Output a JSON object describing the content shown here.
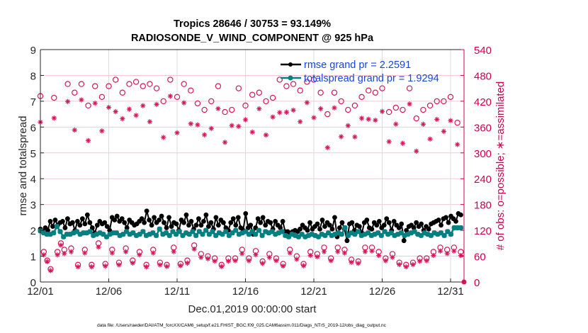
{
  "chart_data": {
    "type": "line",
    "title": "Tropics 28646 / 30753 = 93.149%",
    "subtitle": "RADIOSONDE_V_WIND_COMPONENT @ 925 hPa",
    "xlabel": "Dec.01,2019 00:00:00 start",
    "ylabel": "rmse and totalspread",
    "y2label": "# of obs: o=possible; ∗=assimilated",
    "footnote": "data file: /Users/raeder/DAI/ATM_forcXX/CAM6_setup/f.e21.FHIST_BGC.f09_025.CAM6assim.011/Diags_NTrS_2019-12/obs_diag_output.nc",
    "xlim_days": [
      0,
      31
    ],
    "x_ticks": [
      {
        "day": 0,
        "label": "12/01"
      },
      {
        "day": 5,
        "label": "12/06"
      },
      {
        "day": 10,
        "label": "12/11"
      },
      {
        "day": 15,
        "label": "12/16"
      },
      {
        "day": 20,
        "label": "12/21"
      },
      {
        "day": 25,
        "label": "12/26"
      },
      {
        "day": 30,
        "label": "12/31"
      }
    ],
    "ylim": [
      0,
      9
    ],
    "y_ticks": [
      0,
      1,
      2,
      3,
      4,
      5,
      6,
      7,
      8,
      9
    ],
    "y2lim": [
      0,
      540
    ],
    "y2_ticks": [
      0,
      60,
      120,
      180,
      240,
      300,
      360,
      420,
      480,
      540
    ],
    "grid": true,
    "time_step_days": 0.25,
    "legend": {
      "placement": "top-right",
      "entries": [
        {
          "label": "rmse grand pr = 2.2591",
          "color": "#000000"
        },
        {
          "label": "totalspread grand pr = 1.9294",
          "color": "#008080"
        }
      ]
    },
    "colors": {
      "rmse": "#000000",
      "totalspread": "#008080",
      "obs": "#d6175a",
      "right_axis": "#cc0052",
      "grid": "#dcdcdc",
      "grid_right": "#f5c8d8",
      "legend_text": "#1447e6"
    },
    "series": [
      {
        "name": "rmse",
        "values": [
          2.05,
          1.95,
          2.1,
          2.0,
          2.35,
          2.15,
          2.4,
          2.2,
          2.3,
          2.35,
          2.1,
          2.45,
          2.25,
          2.3,
          2.0,
          2.35,
          2.2,
          2.45,
          2.25,
          2.6,
          2.3,
          2.1,
          1.9,
          2.2,
          2.35,
          2.25,
          2.3,
          2.15,
          2.0,
          2.5,
          2.4,
          2.55,
          2.35,
          2.45,
          2.3,
          2.1,
          2.4,
          2.3,
          2.2,
          2.25,
          2.35,
          2.45,
          2.3,
          2.75,
          2.4,
          2.2,
          2.5,
          2.3,
          2.4,
          2.55,
          2.3,
          2.1,
          2.5,
          2.15,
          2.3,
          2.25,
          2.0,
          2.4,
          2.3,
          2.6,
          2.2,
          2.35,
          2.05,
          2.2,
          2.45,
          2.2,
          2.35,
          2.6,
          2.15,
          2.3,
          2.05,
          2.5,
          2.2,
          2.4,
          2.3,
          2.1,
          2.0,
          2.3,
          2.45,
          2.2,
          2.5,
          2.1,
          2.0,
          2.65,
          2.1,
          2.2,
          1.85,
          2.1,
          2.45,
          2.3,
          2.5,
          2.2,
          2.35,
          2.3,
          2.05,
          2.35,
          2.2,
          2.1,
          2.35,
          1.95,
          1.95,
          1.9,
          1.95,
          2.0,
          1.95,
          2.05,
          2.2,
          2.1,
          2.0,
          2.3,
          2.05,
          2.15,
          2.25,
          2.05,
          2.4,
          2.15,
          2.3,
          2.2,
          2.05,
          2.5,
          1.75,
          2.1,
          2.3,
          2.05,
          1.6,
          2.25,
          2.3,
          2.0,
          2.2,
          2.15,
          1.9,
          2.3,
          2.4,
          2.1,
          2.05,
          2.3,
          2.2,
          2.35,
          2.1,
          2.2,
          2.45,
          2.3,
          2.0,
          2.35,
          2.2,
          2.1,
          2.25,
          1.6,
          2.0,
          2.15,
          2.2,
          2.1,
          2.3,
          2.15,
          2.25,
          2.0,
          2.15,
          2.05,
          2.25,
          2.3,
          2.35,
          2.4,
          2.2,
          2.45,
          2.5,
          2.3,
          2.55,
          2.45,
          2.35,
          2.65,
          2.6
        ]
      },
      {
        "name": "totalspread",
        "values": [
          1.98,
          1.9,
          1.85,
          1.85,
          1.9,
          2.15,
          1.95,
          1.75,
          1.85,
          1.85,
          1.9,
          1.95,
          1.85,
          1.9,
          1.9,
          1.95,
          1.8,
          1.85,
          1.9,
          1.85,
          1.75,
          1.85,
          1.9,
          1.9,
          1.8,
          1.85,
          1.95,
          1.85,
          1.9,
          1.8,
          1.85,
          1.95,
          1.8,
          1.85,
          1.9,
          1.8,
          2.05,
          1.85,
          1.9,
          1.8,
          1.95,
          1.85,
          1.95,
          1.8,
          1.9,
          1.85,
          1.95,
          1.8,
          1.95,
          1.85,
          2.0,
          1.85,
          1.95,
          1.8,
          1.9,
          1.85,
          1.95,
          1.8,
          1.9,
          2.0,
          1.85,
          1.9,
          1.95,
          1.85,
          1.95,
          1.85,
          2.0,
          1.8,
          1.95,
          1.9,
          1.95,
          1.85,
          1.9,
          1.95,
          1.8,
          1.75,
          1.85,
          1.8,
          1.75,
          1.85,
          1.75,
          1.8,
          1.85,
          1.8,
          1.75,
          1.85,
          1.8,
          1.9,
          1.8,
          1.85,
          1.9,
          1.85,
          2.1,
          1.8,
          1.9,
          1.85,
          1.95,
          1.8,
          1.85,
          1.9,
          1.8,
          1.85,
          1.9,
          1.8,
          1.95,
          1.85,
          1.9,
          1.8,
          1.85,
          1.9,
          1.8,
          1.85,
          1.9,
          1.95,
          1.85,
          1.8,
          1.9,
          1.85,
          1.8,
          1.9,
          1.85,
          1.9,
          1.8,
          1.95,
          1.85,
          2.1,
          2.1,
          2.1
        ]
      },
      {
        "name": "obs_possible",
        "values": [
          432,
          70,
          50,
          30,
          428,
          70,
          90,
          75,
          460,
          78,
          440,
          40,
          460,
          75,
          410,
          40,
          455,
          90,
          430,
          42,
          455,
          75,
          470,
          45,
          440,
          78,
          460,
          50,
          465,
          70,
          455,
          40,
          460,
          75,
          450,
          45,
          420,
          40,
          470,
          80,
          430,
          42,
          460,
          50,
          445,
          85,
          415,
          65,
          400,
          60,
          420,
          55,
          455,
          40,
          395,
          55,
          400,
          55,
          450,
          75,
          410,
          55,
          435,
          72,
          440,
          48,
          420,
          65,
          428,
          55,
          470,
          42,
          455,
          75,
          460,
          60,
          445,
          42,
          465,
          70,
          470,
          65,
          440,
          80,
          390,
          55,
          440,
          80,
          420,
          75,
          400,
          52,
          410,
          48,
          430,
          80,
          445,
          80,
          440,
          70,
          450,
          55,
          395,
          65,
          405,
          45,
          400,
          40,
          450,
          45,
          380,
          55,
          400,
          55,
          410,
          70,
          420,
          80,
          420,
          75,
          430,
          80,
          370,
          70
        ]
      }
    ]
  }
}
